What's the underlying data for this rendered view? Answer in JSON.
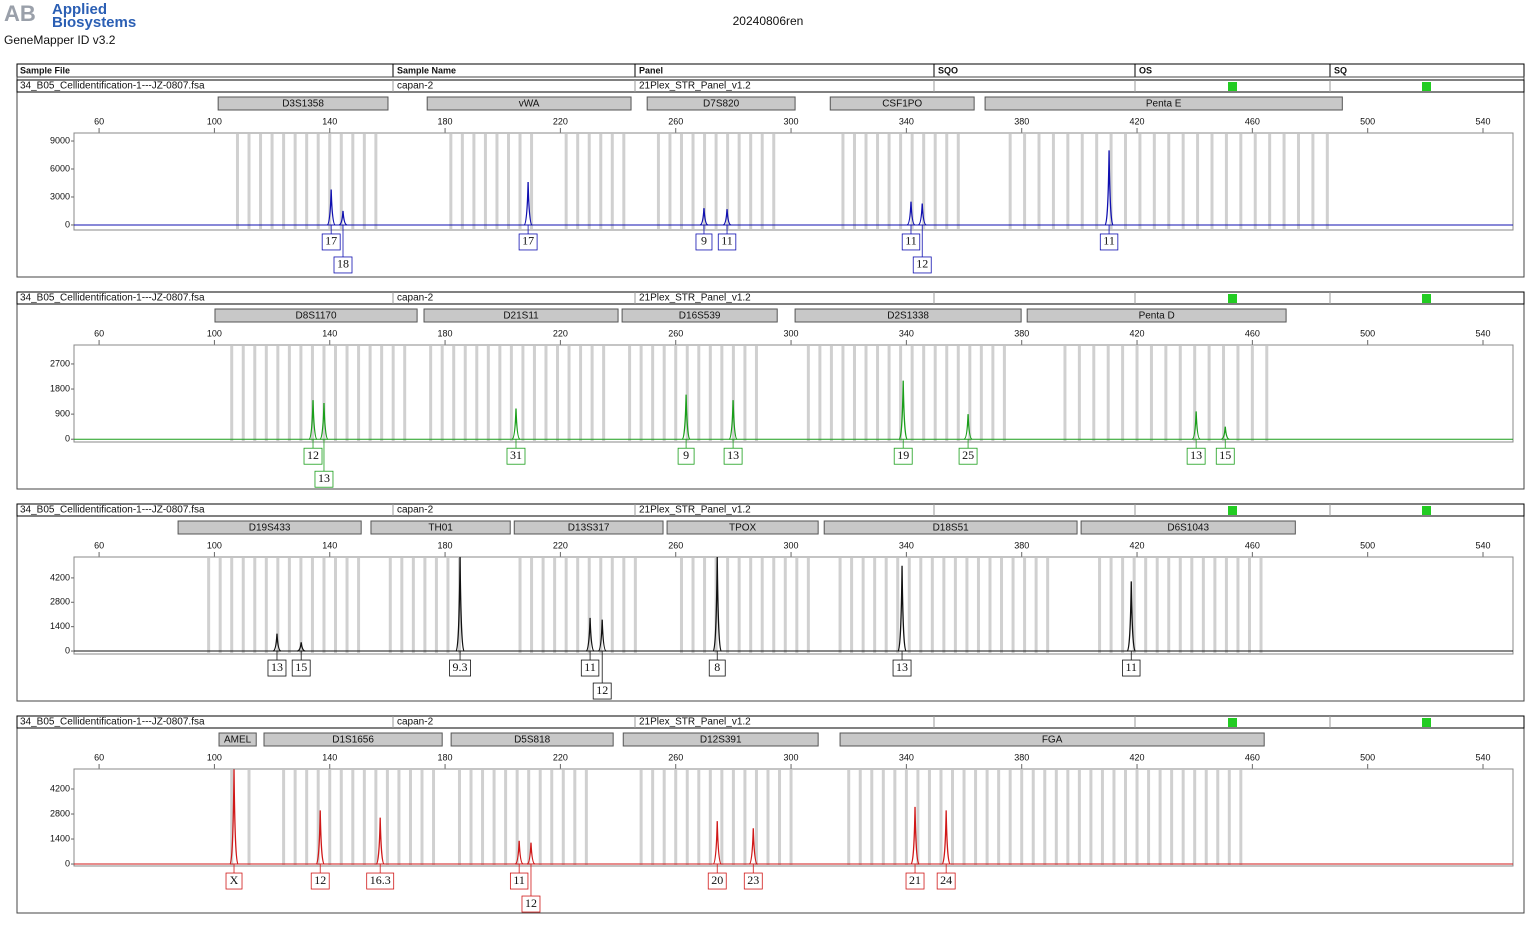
{
  "header": {
    "logo_mark": "AB",
    "logo_line1": "Applied",
    "logo_line2": "Biosystems",
    "software": "GeneMapper ID v3.2",
    "title": "20240806ren",
    "columns": [
      "Sample File",
      "Sample Name",
      "Panel",
      "SQO",
      "OS",
      "SQ"
    ]
  },
  "chart_data": [
    {
      "type": "electropherogram",
      "sample_file": "34_B05_Cellidentification-1---JZ-0807.fsa",
      "sample_name": "capan-2",
      "panel": "21Plex_STR_Panel_v1.2",
      "color": "#1010b0",
      "xlim": [
        51.3,
        550.4
      ],
      "xticks": [
        60,
        100,
        140,
        180,
        220,
        260,
        300,
        340,
        380,
        420,
        460,
        500,
        540
      ],
      "ylim": [
        -540,
        9860
      ],
      "yticks": [
        0,
        3000,
        6000,
        9000
      ],
      "markers": [
        {
          "name": "D3S1358",
          "start": 101.3,
          "end": 160.2
        },
        {
          "name": "vWA",
          "start": 173.8,
          "end": 244.5
        },
        {
          "name": "D7S820",
          "start": 250.1,
          "end": 301.4
        },
        {
          "name": "CSF1PO",
          "start": 313.6,
          "end": 363.5
        },
        {
          "name": "Penta E",
          "start": 367.3,
          "end": 491.2
        }
      ],
      "bins": [
        108,
        112,
        116,
        120,
        124,
        128,
        132,
        136,
        140,
        144,
        148,
        152,
        156,
        182,
        186,
        190,
        194,
        198,
        202,
        206,
        210,
        222,
        226,
        230,
        234,
        238,
        242,
        254,
        258,
        262,
        266,
        270,
        274,
        278,
        282,
        286,
        290,
        294,
        318,
        322,
        326,
        330,
        334,
        338,
        342,
        346,
        350,
        354,
        358,
        376,
        381,
        386,
        391,
        396,
        401,
        406,
        411,
        416,
        421,
        426,
        431,
        436,
        441,
        446,
        451,
        456,
        461,
        466,
        471,
        476,
        481,
        486
      ],
      "peaks": [
        {
          "x": 140.5,
          "height": 3800,
          "label": "17"
        },
        {
          "x": 144.6,
          "height": 1500,
          "label": "18"
        },
        {
          "x": 208.8,
          "height": 4600,
          "label": "17"
        },
        {
          "x": 269.8,
          "height": 1800,
          "label": "9"
        },
        {
          "x": 277.8,
          "height": 1700,
          "label": "11"
        },
        {
          "x": 341.6,
          "height": 2500,
          "label": "11"
        },
        {
          "x": 345.5,
          "height": 2300,
          "label": "12"
        },
        {
          "x": 410.3,
          "height": 8000,
          "label": "11"
        }
      ]
    },
    {
      "type": "electropherogram",
      "sample_file": "34_B05_Cellidentification-1---JZ-0807.fsa",
      "sample_name": "capan-2",
      "panel": "21Plex_STR_Panel_v1.2",
      "color": "#1a9e1a",
      "xlim": [
        51.3,
        550.4
      ],
      "xticks": [
        60,
        100,
        140,
        180,
        220,
        260,
        300,
        340,
        380,
        420,
        460,
        500,
        540
      ],
      "ylim": [
        -100,
        3380
      ],
      "yticks": [
        0,
        900,
        1800,
        2700
      ],
      "markers": [
        {
          "name": "D8S1170",
          "start": 100.2,
          "end": 170.3
        },
        {
          "name": "D21S11",
          "start": 172.7,
          "end": 240.0
        },
        {
          "name": "D16S539",
          "start": 241.4,
          "end": 295.2
        },
        {
          "name": "D2S1338",
          "start": 301.4,
          "end": 379.8
        },
        {
          "name": "Penta D",
          "start": 381.9,
          "end": 471.7
        }
      ],
      "bins": [
        106,
        110,
        114,
        118,
        122,
        126,
        130,
        134,
        138,
        142,
        146,
        150,
        154,
        158,
        162,
        166,
        175,
        179,
        183,
        187,
        191,
        195,
        199,
        203,
        207,
        211,
        215,
        219,
        223,
        227,
        231,
        235,
        244,
        248,
        252,
        256,
        260,
        264,
        268,
        272,
        276,
        280,
        284,
        288,
        306,
        310,
        314,
        318,
        322,
        326,
        330,
        334,
        338,
        342,
        346,
        350,
        354,
        358,
        362,
        366,
        370,
        374,
        395,
        400,
        405,
        410,
        415,
        420,
        425,
        430,
        435,
        440,
        445,
        450,
        455,
        460,
        465
      ],
      "peaks": [
        {
          "x": 134.2,
          "height": 1400,
          "label": "12"
        },
        {
          "x": 138.0,
          "height": 1300,
          "label": "13"
        },
        {
          "x": 204.6,
          "height": 1100,
          "label": "31"
        },
        {
          "x": 263.6,
          "height": 1600,
          "label": "9"
        },
        {
          "x": 279.9,
          "height": 1400,
          "label": "13"
        },
        {
          "x": 338.9,
          "height": 2100,
          "label": "19"
        },
        {
          "x": 361.4,
          "height": 900,
          "label": "25"
        },
        {
          "x": 440.5,
          "height": 1000,
          "label": "13"
        },
        {
          "x": 450.6,
          "height": 450,
          "label": "15"
        }
      ]
    },
    {
      "type": "electropherogram",
      "sample_file": "34_B05_Cellidentification-1---JZ-0807.fsa",
      "sample_name": "capan-2",
      "panel": "21Plex_STR_Panel_v1.2",
      "color": "#111111",
      "xlim": [
        51.3,
        550.4
      ],
      "xticks": [
        60,
        100,
        140,
        180,
        220,
        260,
        300,
        340,
        380,
        420,
        460,
        500,
        540
      ],
      "ylim": [
        -170,
        5400
      ],
      "yticks": [
        0,
        1400,
        2800,
        4200
      ],
      "markers": [
        {
          "name": "D19S433",
          "start": 87.4,
          "end": 150.9
        },
        {
          "name": "TH01",
          "start": 154.3,
          "end": 202.6
        },
        {
          "name": "D13S317",
          "start": 204.0,
          "end": 255.6
        },
        {
          "name": "TPOX",
          "start": 257.0,
          "end": 309.4
        },
        {
          "name": "D18S51",
          "start": 311.5,
          "end": 399.2
        },
        {
          "name": "D6S1043",
          "start": 400.6,
          "end": 474.9
        }
      ],
      "bins": [
        98,
        102,
        106,
        110,
        114,
        118,
        122,
        126,
        130,
        134,
        138,
        142,
        146,
        150,
        161,
        165,
        169,
        173,
        177,
        181,
        185,
        206,
        210,
        214,
        218,
        222,
        226,
        230,
        234,
        238,
        242,
        246,
        262,
        266,
        270,
        274,
        278,
        282,
        286,
        290,
        294,
        298,
        302,
        306,
        317,
        321,
        325,
        329,
        333,
        337,
        341,
        345,
        349,
        353,
        357,
        361,
        365,
        369,
        373,
        377,
        381,
        385,
        389,
        407,
        411,
        415,
        419,
        423,
        427,
        431,
        435,
        439,
        443,
        447,
        451,
        455,
        459,
        463
      ],
      "peaks": [
        {
          "x": 121.7,
          "height": 1000,
          "label": "13"
        },
        {
          "x": 130.1,
          "height": 500,
          "label": "15"
        },
        {
          "x": 185.2,
          "height": 5400,
          "label": "9.3"
        },
        {
          "x": 230.3,
          "height": 1900,
          "label": "11"
        },
        {
          "x": 234.5,
          "height": 1800,
          "label": "12"
        },
        {
          "x": 274.4,
          "height": 5400,
          "label": "8"
        },
        {
          "x": 338.5,
          "height": 4900,
          "label": "13"
        },
        {
          "x": 418.0,
          "height": 4000,
          "label": "11"
        }
      ]
    },
    {
      "type": "electropherogram",
      "sample_file": "34_B05_Cellidentification-1---JZ-0807.fsa",
      "sample_name": "capan-2",
      "panel": "21Plex_STR_Panel_v1.2",
      "color": "#d01818",
      "xlim": [
        51.3,
        550.4
      ],
      "xticks": [
        60,
        100,
        140,
        180,
        220,
        260,
        300,
        340,
        380,
        420,
        460,
        500,
        540
      ],
      "ylim": [
        -110,
        5320
      ],
      "yticks": [
        0,
        1400,
        2800,
        4200
      ],
      "markers": [
        {
          "name": "AMEL",
          "start": 101.6,
          "end": 114.5
        },
        {
          "name": "D1S1656",
          "start": 117.2,
          "end": 179.0
        },
        {
          "name": "D5S818",
          "start": 182.1,
          "end": 238.3
        },
        {
          "name": "D12S391",
          "start": 241.8,
          "end": 309.4
        },
        {
          "name": "FGA",
          "start": 317.0,
          "end": 464.1
        }
      ],
      "bins": [
        106,
        112,
        124,
        128,
        132,
        136,
        140,
        144,
        148,
        152,
        156,
        160,
        164,
        168,
        172,
        176,
        185,
        189,
        193,
        197,
        201,
        205,
        209,
        213,
        217,
        221,
        225,
        229,
        248,
        252,
        256,
        260,
        264,
        268,
        272,
        276,
        280,
        284,
        288,
        292,
        296,
        300,
        320,
        324,
        328,
        332,
        336,
        340,
        344,
        348,
        352,
        356,
        360,
        364,
        368,
        372,
        376,
        380,
        384,
        388,
        392,
        396,
        400,
        404,
        408,
        412,
        416,
        420,
        424,
        428,
        432,
        436,
        440,
        444,
        448,
        452,
        456
      ],
      "peaks": [
        {
          "x": 106.8,
          "height": 5300,
          "label": "X"
        },
        {
          "x": 136.7,
          "height": 3000,
          "label": "12"
        },
        {
          "x": 157.5,
          "height": 2600,
          "label": "16.3"
        },
        {
          "x": 205.7,
          "height": 1300,
          "label": "11"
        },
        {
          "x": 209.8,
          "height": 1200,
          "label": "12"
        },
        {
          "x": 274.4,
          "height": 2400,
          "label": "20"
        },
        {
          "x": 286.9,
          "height": 2000,
          "label": "23"
        },
        {
          "x": 343.0,
          "height": 3200,
          "label": "21"
        },
        {
          "x": 353.8,
          "height": 3000,
          "label": "24"
        }
      ]
    }
  ]
}
